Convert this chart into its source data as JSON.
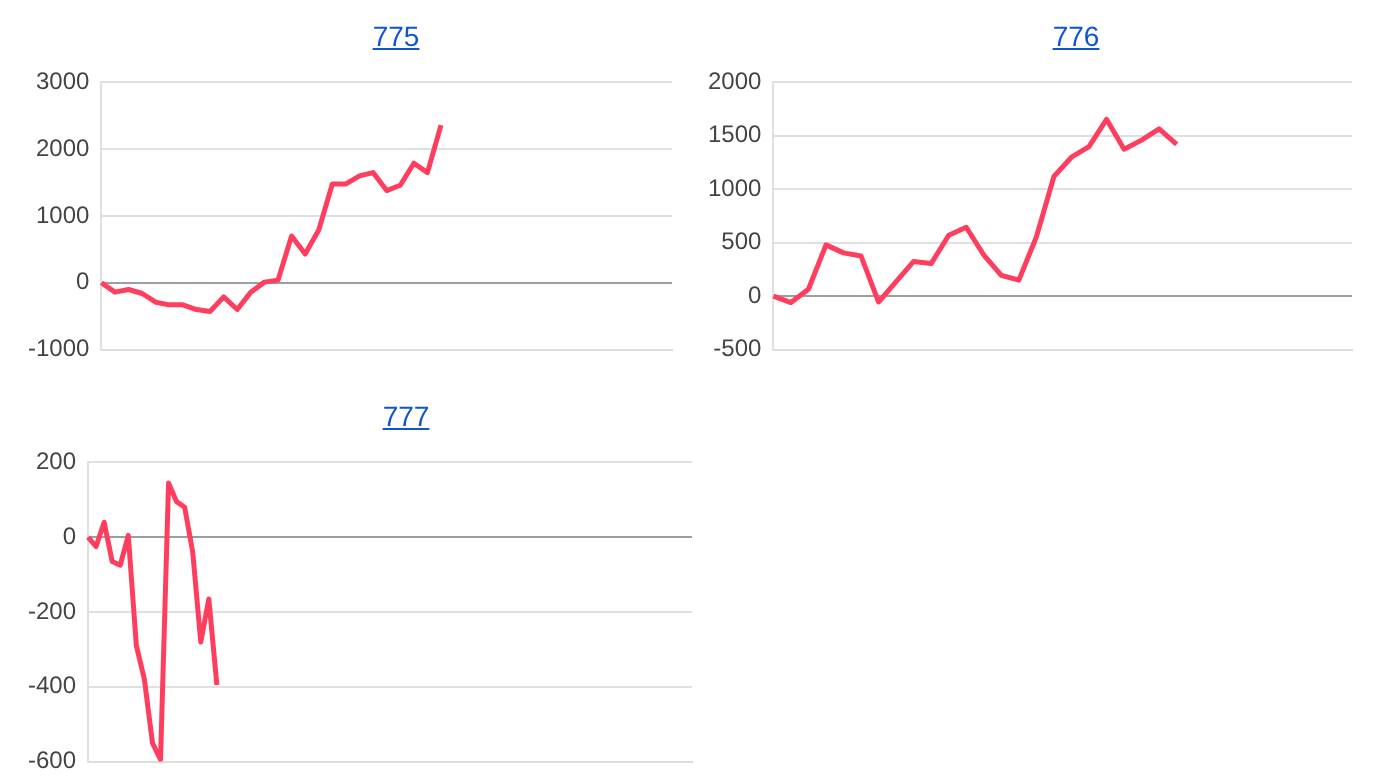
{
  "chart_data": [
    {
      "type": "line",
      "title": "775",
      "categories": [
        null,
        null,
        null,
        null,
        null,
        null,
        null,
        null,
        null,
        null,
        null,
        null,
        null,
        null,
        null,
        null,
        null,
        null,
        null,
        null,
        null,
        null,
        null,
        null,
        null,
        null,
        null,
        null,
        null,
        null,
        null,
        null,
        null,
        null,
        null,
        null,
        null,
        null,
        null,
        null,
        null,
        null,
        null
      ],
      "series": [
        {
          "color": "#ff3d5e",
          "values": [
            0,
            -140,
            -100,
            -160,
            -290,
            -330,
            -330,
            -400,
            -430,
            -210,
            -400,
            -140,
            10,
            40,
            700,
            430,
            790,
            1480,
            1480,
            1600,
            1650,
            1380,
            1460,
            1790,
            1650,
            2360,
            null,
            null,
            null,
            null,
            null,
            null,
            null,
            null,
            null,
            null,
            null,
            null,
            null,
            null,
            null,
            null,
            null
          ]
        }
      ],
      "ylim": [
        -1000,
        3000
      ],
      "yticks": [
        -1000,
        0,
        1000,
        2000,
        3000
      ],
      "grid": "y",
      "tick_labels": "y",
      "marker": "none",
      "line_style": "solid"
    },
    {
      "type": "line",
      "title": "776",
      "categories": [
        null,
        null,
        null,
        null,
        null,
        null,
        null,
        null,
        null,
        null,
        null,
        null,
        null,
        null,
        null,
        null,
        null,
        null,
        null,
        null,
        null,
        null,
        null,
        null,
        null,
        null,
        null,
        null,
        null,
        null,
        null,
        null,
        null,
        null
      ],
      "series": [
        {
          "color": "#ff3d5e",
          "values": [
            0,
            -60,
            65,
            480,
            405,
            375,
            -55,
            135,
            325,
            305,
            570,
            645,
            385,
            195,
            150,
            555,
            1120,
            1300,
            1400,
            1655,
            1375,
            1460,
            1565,
            1420,
            null,
            null,
            null,
            null,
            null,
            null,
            null,
            null,
            null,
            null
          ]
        }
      ],
      "ylim": [
        -500,
        2000
      ],
      "yticks": [
        -500,
        0,
        500,
        1000,
        1500,
        2000
      ],
      "grid": "y",
      "tick_labels": "y",
      "marker": "none",
      "line_style": "solid"
    },
    {
      "type": "line",
      "title": "777",
      "categories": [
        null,
        null,
        null,
        null,
        null,
        null,
        null,
        null,
        null,
        null,
        null,
        null,
        null,
        null,
        null,
        null,
        null,
        null,
        null,
        null,
        null,
        null,
        null,
        null,
        null,
        null,
        null,
        null,
        null,
        null,
        null,
        null,
        null,
        null,
        null,
        null,
        null,
        null,
        null,
        null,
        null,
        null,
        null,
        null,
        null,
        null,
        null,
        null,
        null,
        null,
        null,
        null,
        null,
        null,
        null,
        null,
        null,
        null,
        null,
        null,
        null,
        null,
        null,
        null,
        null,
        null,
        null,
        null,
        null,
        null,
        null,
        null,
        null,
        null,
        null,
        null
      ],
      "series": [
        {
          "color": "#ff3d5e",
          "values": [
            0,
            -25,
            40,
            -65,
            -75,
            5,
            -290,
            -380,
            -550,
            -595,
            145,
            95,
            80,
            -40,
            -280,
            -165,
            -395,
            null,
            null,
            null,
            null,
            null,
            null,
            null,
            null,
            null,
            null,
            null,
            null,
            null,
            null,
            null,
            null,
            null,
            null,
            null,
            null,
            null,
            null,
            null,
            null,
            null,
            null,
            null,
            null,
            null,
            null,
            null,
            null,
            null,
            null,
            null,
            null,
            null,
            null,
            null,
            null,
            null,
            null,
            null,
            null,
            null,
            null,
            null,
            null,
            null,
            null,
            null,
            null,
            null,
            null,
            null,
            null,
            null,
            null,
            null
          ]
        }
      ],
      "ylim": [
        -600,
        200
      ],
      "yticks": [
        -600,
        -400,
        -200,
        0,
        200
      ],
      "grid": "y",
      "tick_labels": "y",
      "marker": "none",
      "line_style": "solid"
    }
  ]
}
